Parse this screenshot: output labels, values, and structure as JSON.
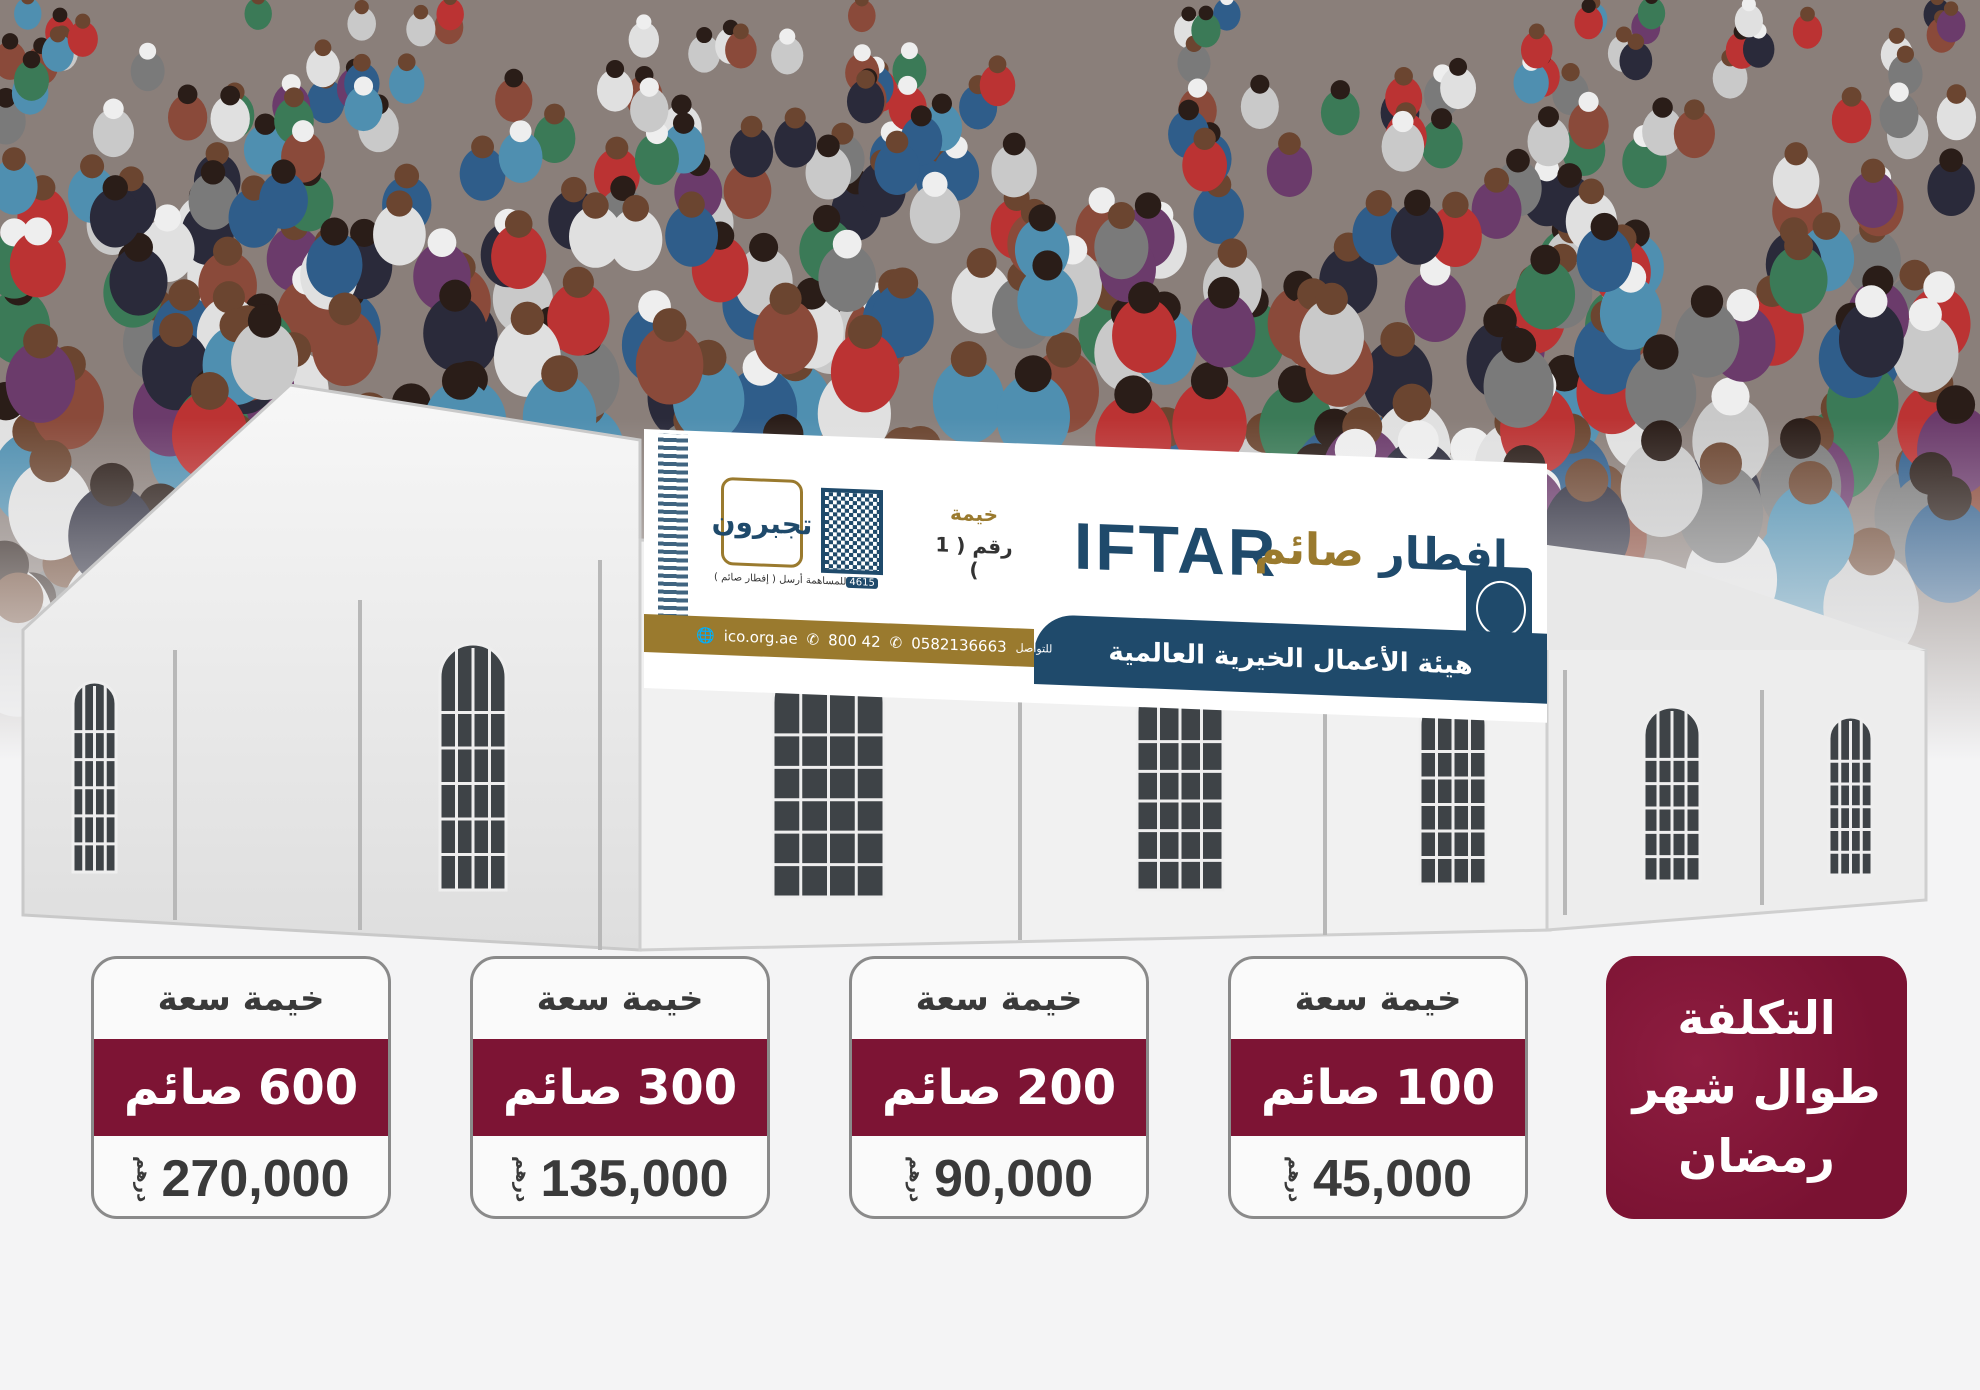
{
  "colors": {
    "maroon": "#7d1434",
    "navy": "#1f4a6b",
    "gold": "#9a7a2e",
    "card_border": "#8a8a8a"
  },
  "banner": {
    "campaign_logo": "تجبرون",
    "donate_line": "للمساهمة أرسل ( إفطار صائم )",
    "sms_code": "4615",
    "tent_label": "خيمة",
    "tent_number": "رقم ( 1 )",
    "title_en": "IFTAR",
    "title_ar_part1": "إفطار",
    "title_ar_part2": "صائم",
    "website": "ico.org.ae",
    "phone_1": "800 42",
    "phone_2": "0582136663",
    "contact_label": "للتواصل",
    "org_name": "هيئة الأعمال الخيرية العالمية"
  },
  "side_box": {
    "line1": "التكلفة",
    "line2": "طوال شهر",
    "line3": "رمضان"
  },
  "cards": [
    {
      "caption": "خيمة سعة",
      "capacity": "100",
      "unit": "صائم",
      "price": "45,000",
      "currency": "درهم"
    },
    {
      "caption": "خيمة سعة",
      "capacity": "200",
      "unit": "صائم",
      "price": "90,000",
      "currency": "درهم"
    },
    {
      "caption": "خيمة سعة",
      "capacity": "300",
      "unit": "صائم",
      "price": "135,000",
      "currency": "درهم"
    },
    {
      "caption": "خيمة سعة",
      "capacity": "600",
      "unit": "صائم",
      "price": "270,000",
      "currency": "درهم"
    }
  ]
}
